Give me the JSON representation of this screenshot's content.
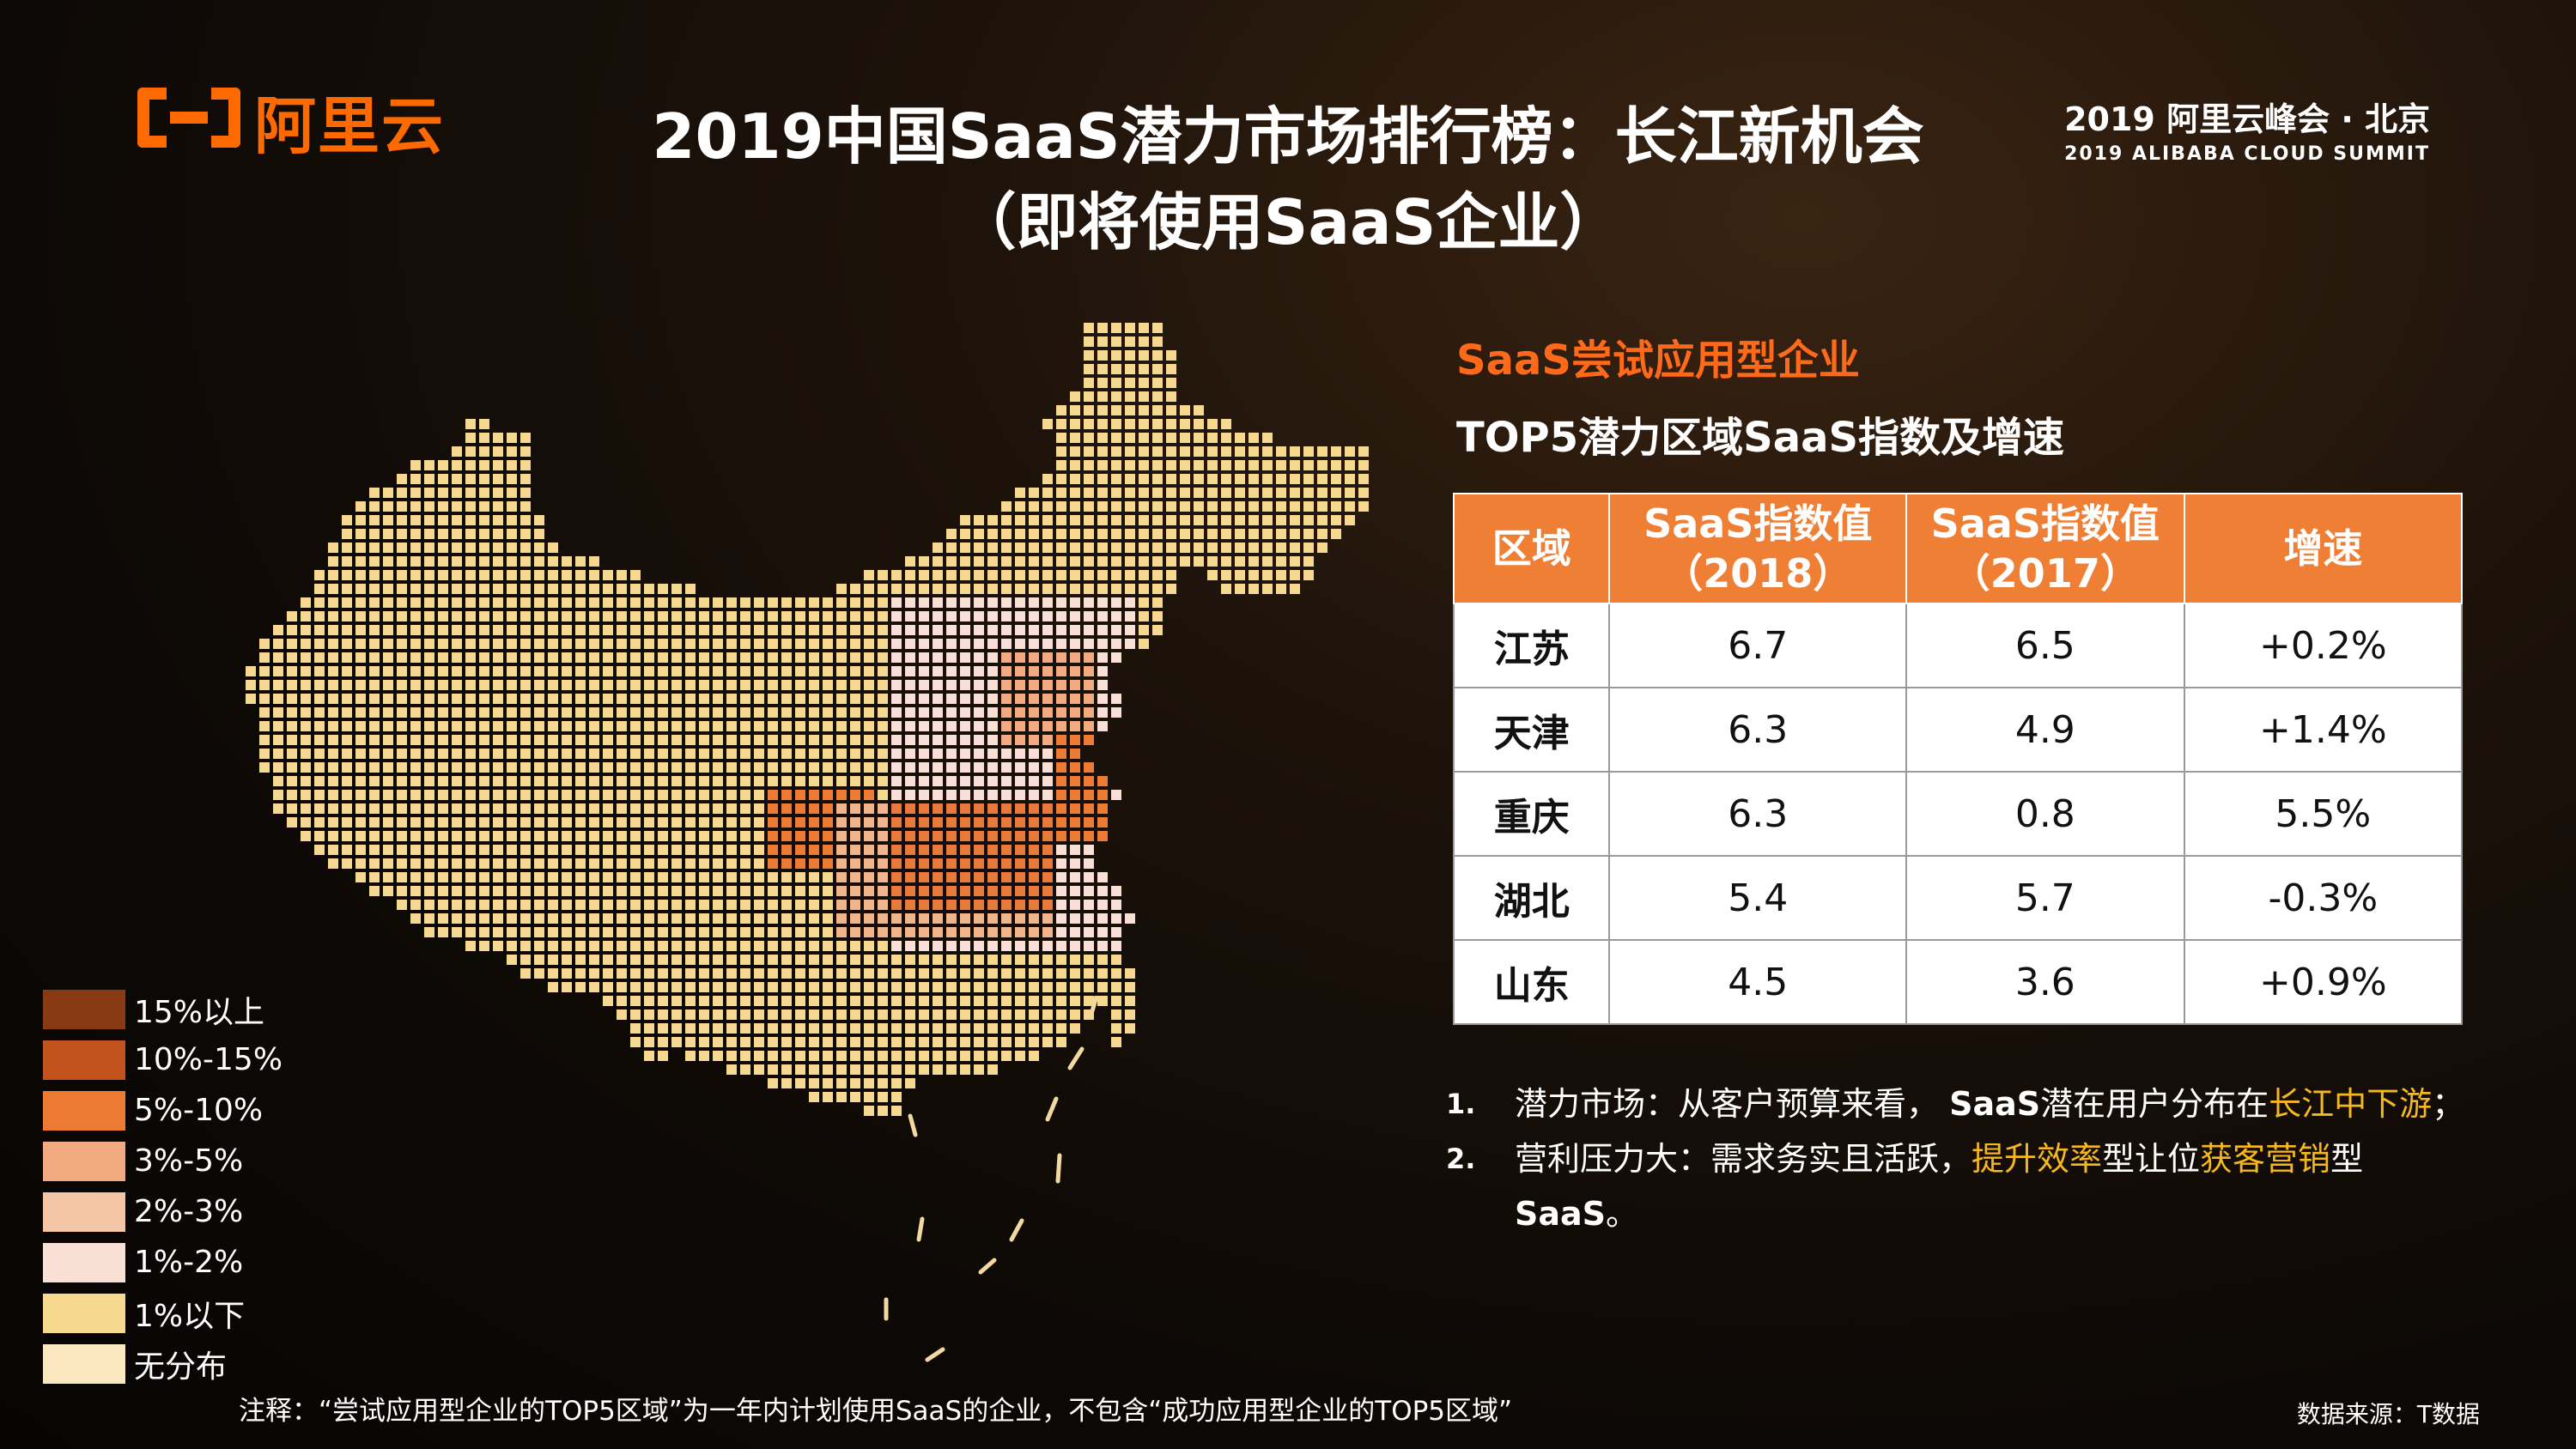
{
  "logo": {
    "text": "阿里云",
    "icon": "aliyun-bracket-logo-icon",
    "color": "#ff6a00"
  },
  "title_line1": "2019中国SaaS潜力市场排行榜：长江新机会",
  "title_line2": "（即将使用SaaS企业）",
  "summit": {
    "line1": "2019 阿里云峰会 · 北京",
    "line2": "2019 ALIBABA CLOUD SUMMIT"
  },
  "subtitle1": "SaaS尝试应用型企业",
  "subtitle2": "TOP5潜力区域SaaS指数及增速",
  "table": {
    "headers": [
      {
        "line1": "区域",
        "line2": ""
      },
      {
        "line1": "SaaS指数值",
        "line2": "（2018）"
      },
      {
        "line1": "SaaS指数值",
        "line2": "（2017）"
      },
      {
        "line1": "增速",
        "line2": ""
      }
    ],
    "rows": [
      {
        "region": "江苏",
        "v2018": "6.7",
        "v2017": "6.5",
        "growth": "+0.2%"
      },
      {
        "region": "天津",
        "v2018": "6.3",
        "v2017": "4.9",
        "growth": "+1.4%"
      },
      {
        "region": "重庆",
        "v2018": "6.3",
        "v2017": "0.8",
        "growth": "5.5%"
      },
      {
        "region": "湖北",
        "v2018": "5.4",
        "v2017": "5.7",
        "growth": "-0.3%"
      },
      {
        "region": "山东",
        "v2018": "4.5",
        "v2017": "3.6",
        "growth": "+0.9%"
      }
    ]
  },
  "notes": [
    {
      "num": "1.",
      "parts": [
        {
          "text": "潜力市场：从客户预算来看， ",
          "hl": false
        },
        {
          "text": "SaaS",
          "hl": false,
          "bold": true
        },
        {
          "text": "潜在用户分布在",
          "hl": false
        },
        {
          "text": "长江中下游",
          "hl": true
        },
        {
          "text": "；",
          "hl": false
        }
      ]
    },
    {
      "num": "2.",
      "parts": [
        {
          "text": "营利压力大：需求务实且活跃，",
          "hl": false
        },
        {
          "text": "提升效率",
          "hl": true
        },
        {
          "text": "型让位",
          "hl": false
        },
        {
          "text": "获客营销",
          "hl": true
        },
        {
          "text": "型",
          "hl": false
        }
      ]
    },
    {
      "num": "",
      "parts": [
        {
          "text": "SaaS",
          "hl": false,
          "bold": true
        },
        {
          "text": "。",
          "hl": false
        }
      ]
    }
  ],
  "legend": [
    {
      "label": "15%以上",
      "color": "#8a3a12"
    },
    {
      "label": "10%-15%",
      "color": "#c2531c"
    },
    {
      "label": "5%-10%",
      "color": "#ee7b33"
    },
    {
      "label": "3%-5%",
      "color": "#f2ab7e"
    },
    {
      "label": "2%-3%",
      "color": "#f5c6a6"
    },
    {
      "label": "1%-2%",
      "color": "#f8e0d6"
    },
    {
      "label": "1%以下",
      "color": "#f6d88e"
    },
    {
      "label": "无分布",
      "color": "#fbe8c0"
    }
  ],
  "footnote": "注释：“尝试应用型企业的TOP5区域”为一年内计划使用SaaS的企业，不包含“成功应用型企业的TOP5区域”",
  "source": "数据来源：T数据",
  "map": {
    "icon": "china-dot-map-icon"
  }
}
